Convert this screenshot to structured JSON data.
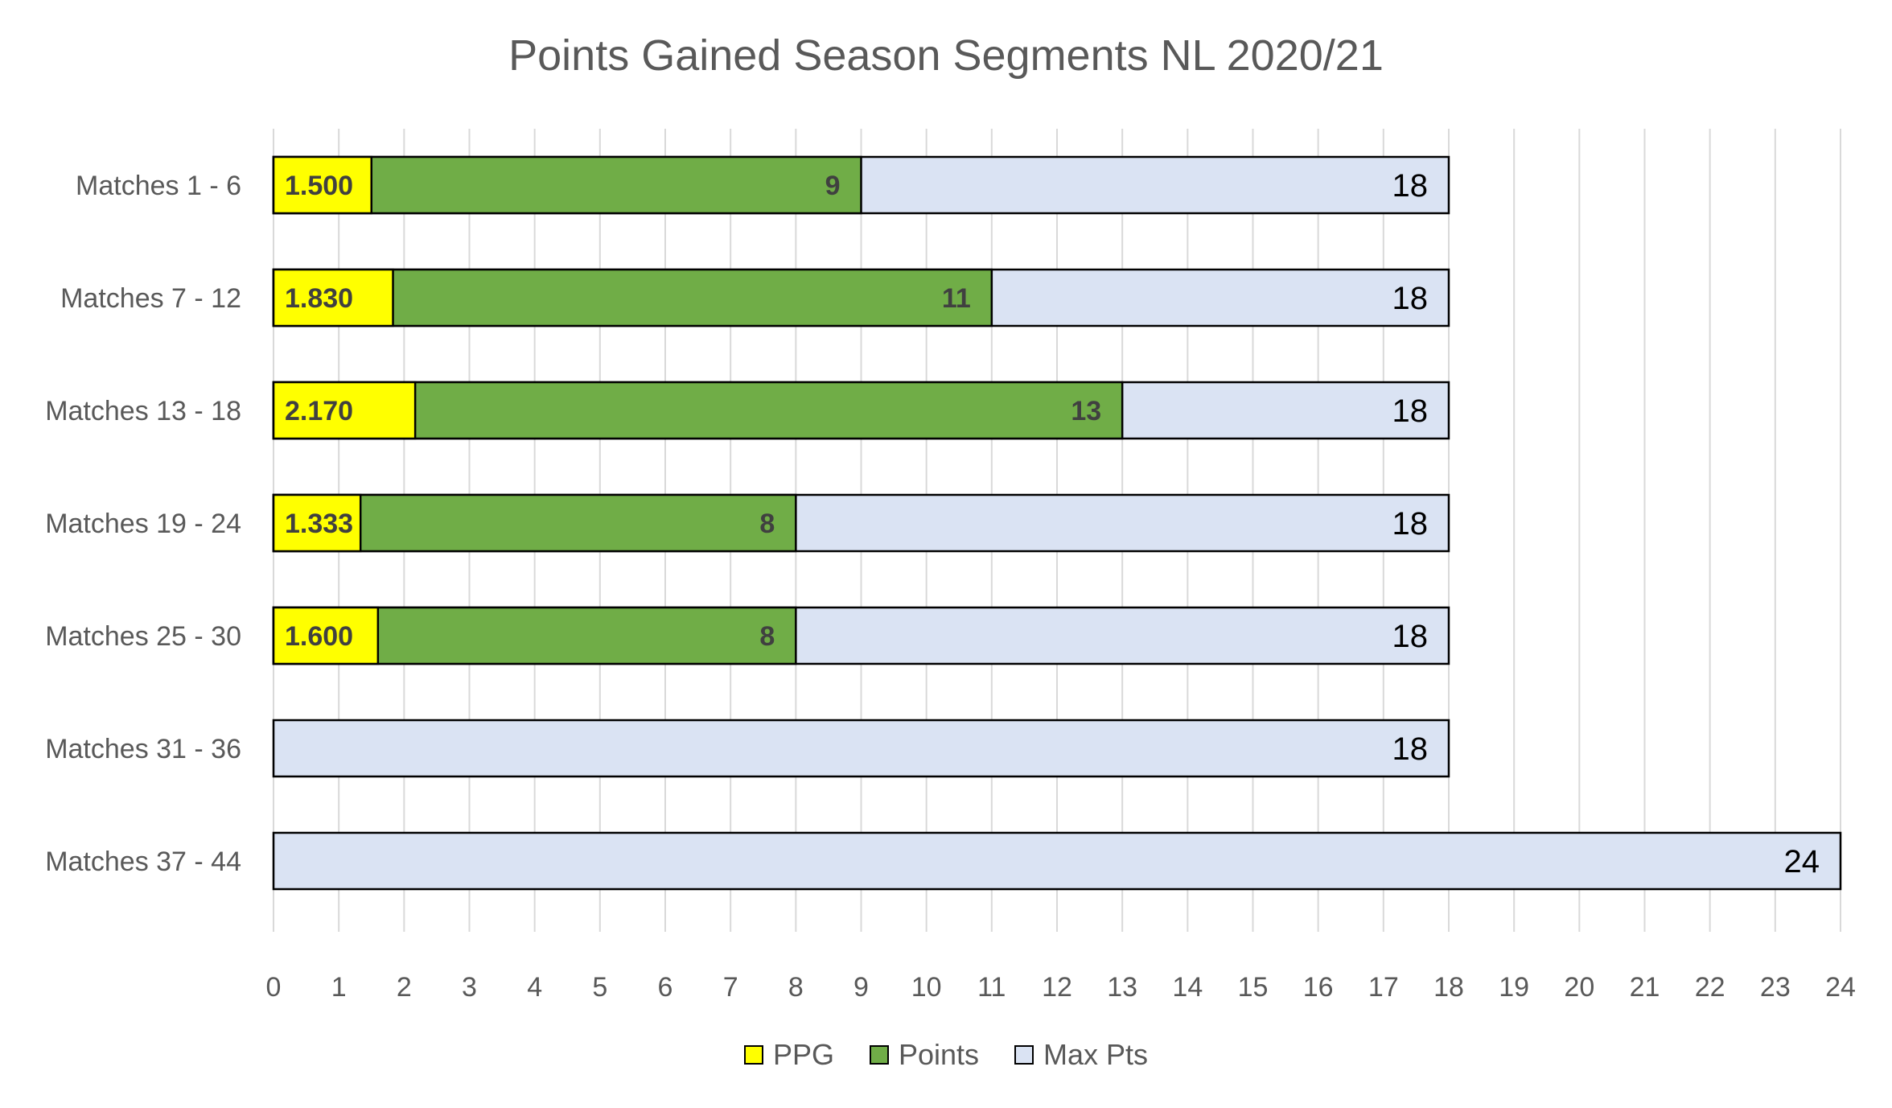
{
  "chart_data": {
    "type": "bar",
    "orientation": "horizontal",
    "stacking": "overlay",
    "title": "Points Gained Season Segments NL 2020/21",
    "categories": [
      "Matches 1 - 6",
      "Matches 7 - 12",
      "Matches 13 - 18",
      "Matches 19 - 24",
      "Matches 25 - 30",
      "Matches 31 - 36",
      "Matches 37 - 44"
    ],
    "series": [
      {
        "name": "PPG",
        "color": "#ffff00",
        "values": [
          1.5,
          1.83,
          2.17,
          1.333,
          1.6,
          null,
          null
        ],
        "labels": [
          "1.500",
          "1.830",
          "2.170",
          "1.333",
          "1.600",
          "",
          ""
        ]
      },
      {
        "name": "Points",
        "color": "#70ad47",
        "values": [
          9,
          11,
          13,
          8,
          8,
          null,
          null
        ],
        "labels": [
          "9",
          "11",
          "13",
          "8",
          "8",
          "",
          ""
        ]
      },
      {
        "name": "Max Pts",
        "color": "#dae3f3",
        "values": [
          18,
          18,
          18,
          18,
          18,
          18,
          24
        ],
        "labels": [
          "18",
          "18",
          "18",
          "18",
          "18",
          "18",
          "24"
        ]
      }
    ],
    "xlim": [
      0,
      24
    ],
    "x_ticks": [
      "0",
      "1",
      "2",
      "3",
      "4",
      "5",
      "6",
      "7",
      "8",
      "9",
      "10",
      "11",
      "12",
      "13",
      "14",
      "15",
      "16",
      "17",
      "18",
      "19",
      "20",
      "21",
      "22",
      "23",
      "24"
    ],
    "xlabel": "",
    "ylabel": "",
    "grid": "vertical",
    "legend_position": "bottom"
  }
}
